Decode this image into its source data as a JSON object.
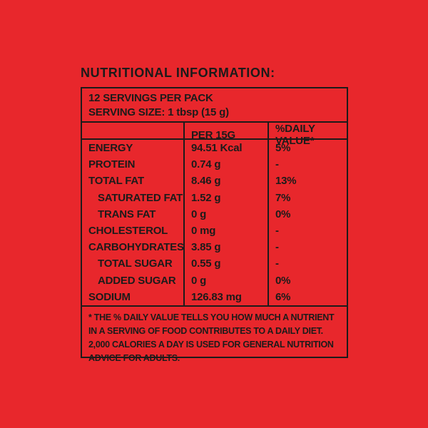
{
  "label": {
    "title": "NUTRITIONAL INFORMATION:",
    "servings_line": "12 SERVINGS PER PACK",
    "serving_size_line": "SERVING SIZE: 1 tbsp (15 g)",
    "columns": {
      "amount_header": "PER 15G",
      "daily_value_header": "%DAILY VALUE*"
    },
    "rows": [
      {
        "nutrient": "ENERGY",
        "amount": "94.51 Kcal",
        "daily_value": "5%",
        "indent": false
      },
      {
        "nutrient": "PROTEIN",
        "amount": "0.74 g",
        "daily_value": "-",
        "indent": false
      },
      {
        "nutrient": "TOTAL FAT",
        "amount": "8.46 g",
        "daily_value": "13%",
        "indent": false
      },
      {
        "nutrient": "SATURATED FAT",
        "amount": "1.52 g",
        "daily_value": "7%",
        "indent": true
      },
      {
        "nutrient": "TRANS FAT",
        "amount": "0 g",
        "daily_value": "0%",
        "indent": true
      },
      {
        "nutrient": "CHOLESTEROL",
        "amount": "0 mg",
        "daily_value": "-",
        "indent": false
      },
      {
        "nutrient": "CARBOHYDRATES",
        "amount": "3.85 g",
        "daily_value": "-",
        "indent": false
      },
      {
        "nutrient": "TOTAL SUGAR",
        "amount": "0.55 g",
        "daily_value": "-",
        "indent": true
      },
      {
        "nutrient": "ADDED SUGAR",
        "amount": "0 g",
        "daily_value": "0%",
        "indent": true
      },
      {
        "nutrient": "SODIUM",
        "amount": "126.83 mg",
        "daily_value": "6%",
        "indent": false
      }
    ],
    "footnote": "* THE % DAILY VALUE TELLS YOU HOW MUCH A NUTRIENT IN A SERVING OF FOOD CONTRIBUTES TO A DAILY DIET. 2,000 CALORIES A DAY IS USED FOR GENERAL NUTRITION ADVICE FOR ADULTS.",
    "colors": {
      "background": "#e8272c",
      "ink": "#1c1b1a"
    }
  }
}
